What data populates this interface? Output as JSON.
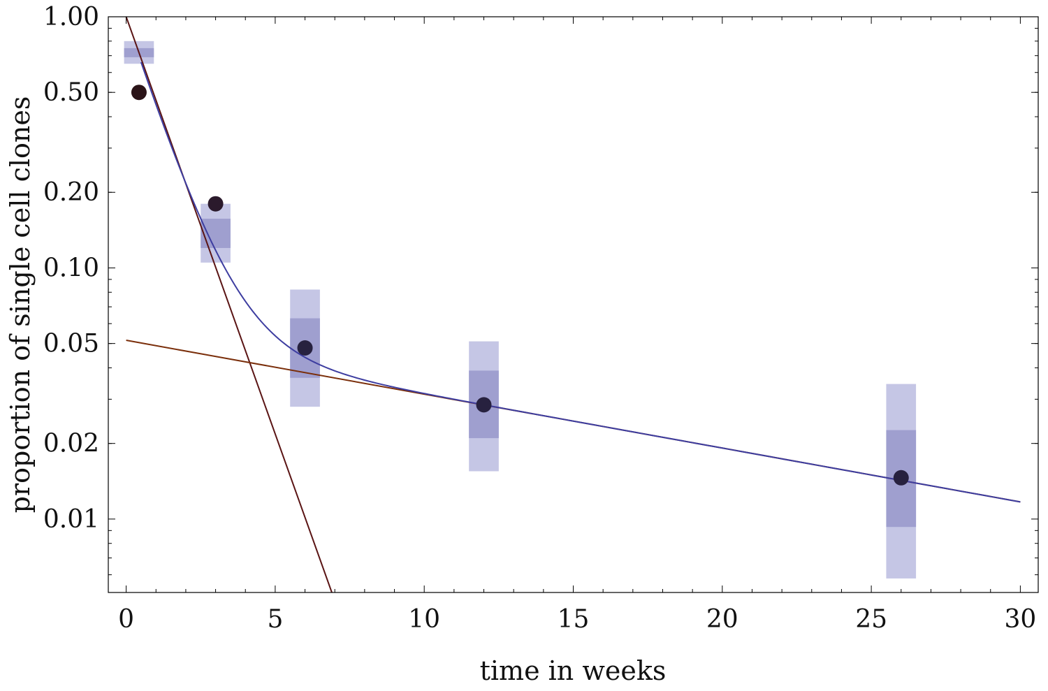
{
  "chart_data": {
    "type": "scatter",
    "title": "",
    "xlabel": "time in weeks",
    "ylabel": "proportion of single cell clones",
    "xlim": [
      -0.6,
      30.6
    ],
    "ylim": [
      0.0051,
      1.0
    ],
    "yscale": "log",
    "grid": false,
    "legend": "none",
    "x_ticks": [
      0,
      5,
      10,
      15,
      20,
      25,
      30
    ],
    "x_tick_labels": [
      "0",
      "5",
      "10",
      "15",
      "20",
      "25",
      "30"
    ],
    "y_ticks": [
      0.01,
      0.02,
      0.05,
      0.1,
      0.2,
      0.5,
      1.0
    ],
    "y_tick_labels": [
      "0.01",
      "0.02",
      "0.05",
      "0.10",
      "0.20",
      "0.50",
      "1.00"
    ],
    "points": [
      {
        "x": 0.43,
        "y": 0.5,
        "color": "#2b1418"
      },
      {
        "x": 3.0,
        "y": 0.18,
        "color": "#2b1a2c"
      },
      {
        "x": 6.0,
        "y": 0.048,
        "color": "#27213f"
      },
      {
        "x": 12.0,
        "y": 0.0285,
        "color": "#27213f"
      },
      {
        "x": 26.0,
        "y": 0.0146,
        "color": "#27213f"
      }
    ],
    "intervals": [
      {
        "x": 0.43,
        "inner": [
          0.69,
          0.75
        ],
        "outer": [
          0.65,
          0.8
        ]
      },
      {
        "x": 3.0,
        "inner": [
          0.12,
          0.157
        ],
        "outer": [
          0.105,
          0.18
        ]
      },
      {
        "x": 6.0,
        "inner": [
          0.0365,
          0.063
        ],
        "outer": [
          0.028,
          0.082
        ]
      },
      {
        "x": 12.0,
        "inner": [
          0.021,
          0.039
        ],
        "outer": [
          0.0155,
          0.051
        ]
      },
      {
        "x": 26.0,
        "inner": [
          0.0093,
          0.0226
        ],
        "outer": [
          0.0058,
          0.0345
        ]
      }
    ],
    "interval_width": 1.0,
    "series": [
      {
        "type": "line",
        "x": [
          0,
          6.9
        ],
        "y": [
          1.0,
          0.0051
        ],
        "color": "#5a1414"
      },
      {
        "type": "line",
        "x": [
          0,
          30
        ],
        "y": [
          0.0515,
          0.0117
        ],
        "color": "#7a2e0a"
      },
      {
        "type": "curve",
        "x_range": [
          0.5,
          30
        ],
        "components": [
          {
            "a": 0.93,
            "b": 0.8475
          },
          {
            "a": 0.0515,
            "b": 0.0494
          }
        ],
        "color": "#3d3da0"
      }
    ],
    "colors": {
      "inner_band": "#9f9fcf",
      "outer_band": "#c5c6e5",
      "frame": "#000000"
    }
  }
}
